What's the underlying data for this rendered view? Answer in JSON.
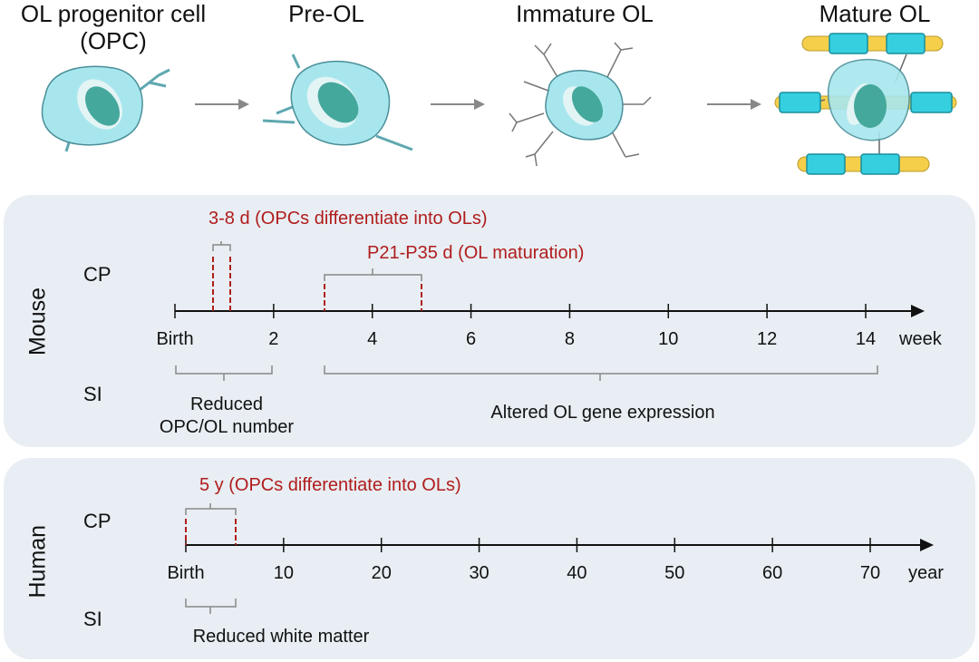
{
  "stages": [
    {
      "label": "OL progenitor cell\n(OPC)"
    },
    {
      "label": "Pre-OL"
    },
    {
      "label": "Immature OL"
    },
    {
      "label": "Mature OL"
    }
  ],
  "colors": {
    "panel_bg": "#e8eef3",
    "cell_body": "#a8e6ee",
    "nucleus": "#45a89c",
    "myelin_cyan": "#35cfe0",
    "myelin_yellow": "#f6cf4a",
    "red": "#b01c1c",
    "gray": "#888888"
  },
  "mouse": {
    "species": "Mouse",
    "row_cp": "CP",
    "row_si": "SI",
    "axis": {
      "ticks": [
        {
          "value": 0,
          "label": "Birth"
        },
        {
          "value": 2,
          "label": "2"
        },
        {
          "value": 4,
          "label": "4"
        },
        {
          "value": 6,
          "label": "6"
        },
        {
          "value": 8,
          "label": "8"
        },
        {
          "value": 10,
          "label": "10"
        },
        {
          "value": 12,
          "label": "12"
        },
        {
          "value": 14,
          "label": "14"
        }
      ],
      "unit": "week"
    },
    "cp_note_1": "3-8 d (OPCs differentiate into OLs)",
    "cp_note_2": "P21-P35 d (OL maturation)",
    "si_note_1": "Reduced\nOPC/OL number",
    "si_note_2": "Altered OL gene expression"
  },
  "human": {
    "species": "Human",
    "row_cp": "CP",
    "row_si": "SI",
    "axis": {
      "ticks": [
        {
          "value": 0,
          "label": "Birth"
        },
        {
          "value": 10,
          "label": "10"
        },
        {
          "value": 20,
          "label": "20"
        },
        {
          "value": 30,
          "label": "30"
        },
        {
          "value": 40,
          "label": "40"
        },
        {
          "value": 50,
          "label": "50"
        },
        {
          "value": 60,
          "label": "60"
        },
        {
          "value": 70,
          "label": "70"
        }
      ],
      "unit": "year"
    },
    "cp_note_1": "5 y (OPCs differentiate into OLs)",
    "si_note_1": "Reduced white matter"
  }
}
